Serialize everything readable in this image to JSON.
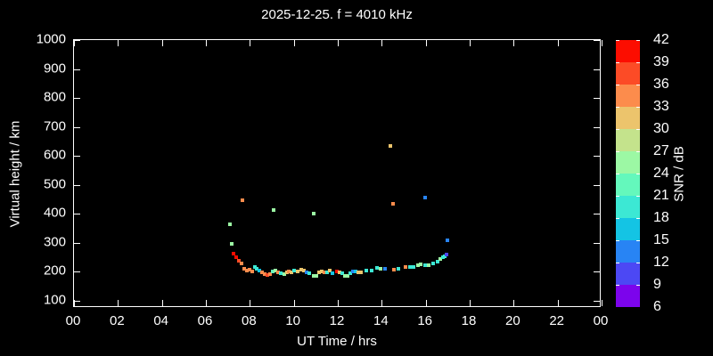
{
  "window": {
    "background": "#000000",
    "foreground": "#ffffff"
  },
  "chart_data": {
    "type": "scatter",
    "title": "2025-12-25. f = 4010 kHz",
    "xlabel": "UT Time / hrs",
    "ylabel": "Virtual height / km",
    "colorbar_label": "SNR / dB",
    "grid": false,
    "xlim": [
      0,
      24
    ],
    "ylim": [
      75,
      1000
    ],
    "x_ticks": [
      {
        "value": 0,
        "label": "00"
      },
      {
        "value": 2,
        "label": "02"
      },
      {
        "value": 4,
        "label": "04"
      },
      {
        "value": 6,
        "label": "06"
      },
      {
        "value": 8,
        "label": "08"
      },
      {
        "value": 10,
        "label": "10"
      },
      {
        "value": 12,
        "label": "12"
      },
      {
        "value": 14,
        "label": "14"
      },
      {
        "value": 16,
        "label": "16"
      },
      {
        "value": 18,
        "label": "18"
      },
      {
        "value": 20,
        "label": "20"
      },
      {
        "value": 22,
        "label": "22"
      },
      {
        "value": 24,
        "label": "00"
      }
    ],
    "y_ticks": [
      100,
      200,
      300,
      400,
      500,
      600,
      700,
      800,
      900,
      1000
    ],
    "colorbar": {
      "min": 6,
      "max": 42,
      "step": 3,
      "tick_labels": [
        "6",
        "9",
        "12",
        "15",
        "18",
        "21",
        "24",
        "27",
        "30",
        "33",
        "36",
        "39",
        "42"
      ],
      "colors_low_to_high": [
        "#7c04ec",
        "#4c48f4",
        "#2884f4",
        "#14c4e4",
        "#3ce8d4",
        "#64f8bc",
        "#9cf8a4",
        "#c4e38c",
        "#ecc46c",
        "#fc8c4c",
        "#fc4b26",
        "#fc0d00"
      ]
    },
    "points": {
      "format": [
        "ut_hrs",
        "virtual_height_km",
        "snr_db"
      ],
      "values": [
        [
          7.18,
          296,
          25
        ],
        [
          7.26,
          262,
          40
        ],
        [
          7.38,
          250,
          40
        ],
        [
          7.5,
          238,
          37
        ],
        [
          7.62,
          229,
          34
        ],
        [
          7.74,
          210,
          34
        ],
        [
          7.87,
          204,
          34
        ],
        [
          7.99,
          207,
          34
        ],
        [
          8.11,
          201,
          34
        ],
        [
          8.23,
          216,
          19
        ],
        [
          8.31,
          210,
          19
        ],
        [
          8.43,
          204,
          16
        ],
        [
          8.55,
          198,
          34
        ],
        [
          8.68,
          192,
          34
        ],
        [
          8.8,
          189,
          37
        ],
        [
          8.92,
          192,
          34
        ],
        [
          9.04,
          201,
          22
        ],
        [
          9.16,
          204,
          25
        ],
        [
          9.28,
          198,
          34
        ],
        [
          9.4,
          195,
          19
        ],
        [
          9.55,
          192,
          25
        ],
        [
          9.67,
          198,
          31
        ],
        [
          9.79,
          201,
          34
        ],
        [
          9.91,
          198,
          31
        ],
        [
          10.03,
          204,
          19
        ],
        [
          10.16,
          201,
          31
        ],
        [
          10.35,
          207,
          31
        ],
        [
          10.47,
          204,
          31
        ],
        [
          10.6,
          198,
          13
        ],
        [
          10.72,
          195,
          19
        ],
        [
          10.91,
          186,
          25
        ],
        [
          11.03,
          186,
          25
        ],
        [
          11.15,
          198,
          31
        ],
        [
          11.27,
          201,
          31
        ],
        [
          11.4,
          198,
          34
        ],
        [
          11.52,
          198,
          19
        ],
        [
          11.64,
          204,
          31
        ],
        [
          11.76,
          195,
          16
        ],
        [
          11.96,
          201,
          40
        ],
        [
          12.08,
          198,
          31
        ],
        [
          12.2,
          195,
          19
        ],
        [
          12.32,
          186,
          25
        ],
        [
          12.45,
          186,
          25
        ],
        [
          12.57,
          195,
          19
        ],
        [
          12.69,
          201,
          13
        ],
        [
          12.81,
          201,
          16
        ],
        [
          12.93,
          198,
          31
        ],
        [
          13.05,
          198,
          31
        ],
        [
          13.3,
          204,
          19
        ],
        [
          13.54,
          204,
          19
        ],
        [
          13.79,
          213,
          19
        ],
        [
          13.95,
          210,
          25
        ],
        [
          14.15,
          210,
          13
        ],
        [
          14.55,
          207,
          34
        ],
        [
          14.76,
          210,
          19
        ],
        [
          15.08,
          216,
          34
        ],
        [
          15.28,
          216,
          19
        ],
        [
          15.45,
          216,
          19
        ],
        [
          15.65,
          222,
          25
        ],
        [
          15.77,
          226,
          25
        ],
        [
          15.97,
          222,
          19
        ],
        [
          16.14,
          222,
          25
        ],
        [
          16.34,
          229,
          19
        ],
        [
          16.54,
          235,
          19
        ],
        [
          16.66,
          244,
          25
        ],
        [
          16.79,
          250,
          19
        ],
        [
          16.87,
          253,
          19
        ],
        [
          16.95,
          259,
          10
        ],
        [
          7.1,
          364,
          25
        ],
        [
          7.66,
          447,
          34
        ],
        [
          9.08,
          413,
          25
        ],
        [
          10.91,
          401,
          25
        ],
        [
          14.4,
          634,
          31
        ],
        [
          14.52,
          435,
          34
        ],
        [
          15.97,
          456,
          13
        ],
        [
          16.99,
          308,
          13
        ]
      ]
    }
  }
}
